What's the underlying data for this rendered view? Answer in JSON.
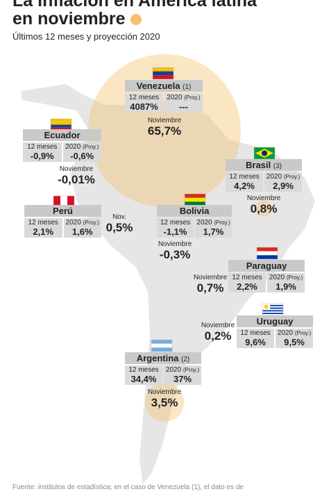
{
  "header": {
    "title_line1": "La inflación en América latina",
    "title_line2": "en noviembre",
    "subtitle": "Últimos 12 meses y proyección 2020"
  },
  "countries": [
    {
      "name": "Venezuela",
      "note": "(1)",
      "twelve_label": "12 meses",
      "twelve": "4087%",
      "proj_label": "2020",
      "proj_suffix": "(Proy.)",
      "proj": "---",
      "nov_label": "Noviembre",
      "nov": "65,7%"
    },
    {
      "name": "Ecuador",
      "twelve_label": "12 meses",
      "twelve": "-0,9%",
      "proj_label": "2020",
      "proj_suffix": "(Proy.)",
      "proj": "-0,6%",
      "nov_label": "Noviembre",
      "nov": "-0,01%"
    },
    {
      "name": "Brasil",
      "note": "(3)",
      "twelve_label": "12 meses",
      "twelve": "4,2%",
      "proj_label": "2020",
      "proj_suffix": "(Proy.)",
      "proj": "2,9%",
      "nov_label": "Noviembre",
      "nov": "0,8%"
    },
    {
      "name": "Perú",
      "twelve_label": "12 meses",
      "twelve": "2,1%",
      "proj_label": "2020",
      "proj_suffix": "(Proy.)",
      "proj": "1,6%",
      "nov_label": "Nov.",
      "nov": "0,5%"
    },
    {
      "name": "Bolivia",
      "twelve_label": "12 meses",
      "twelve": "-1,1%",
      "proj_label": "2020",
      "proj_suffix": "(Proy.)",
      "proj": "1,7%",
      "nov_label": "Noviembre",
      "nov": "-0,3%"
    },
    {
      "name": "Paraguay",
      "twelve_label": "12 meses",
      "twelve": "2,2%",
      "proj_label": "2020",
      "proj_suffix": "(Proy.)",
      "proj": "1,9%",
      "nov_label": "Noviembre",
      "nov": "0,7%"
    },
    {
      "name": "Uruguay",
      "twelve_label": "12 meses",
      "twelve": "9,6%",
      "proj_label": "2020",
      "proj_suffix": "(Proy.)",
      "proj": "9,5%",
      "nov_label": "Noviembre",
      "nov": "0,2%"
    },
    {
      "name": "Argentina",
      "note": "(2)",
      "twelve_label": "12 meses",
      "twelve": "34,4%",
      "proj_label": "2020",
      "proj_suffix": "(Proy.)",
      "proj": "37%",
      "nov_label": "Noviembre",
      "nov": "3,5%"
    }
  ],
  "footer": {
    "source": "Fuente: institutos de estadística; en el caso de Venezuela (1), el dato es de"
  }
}
